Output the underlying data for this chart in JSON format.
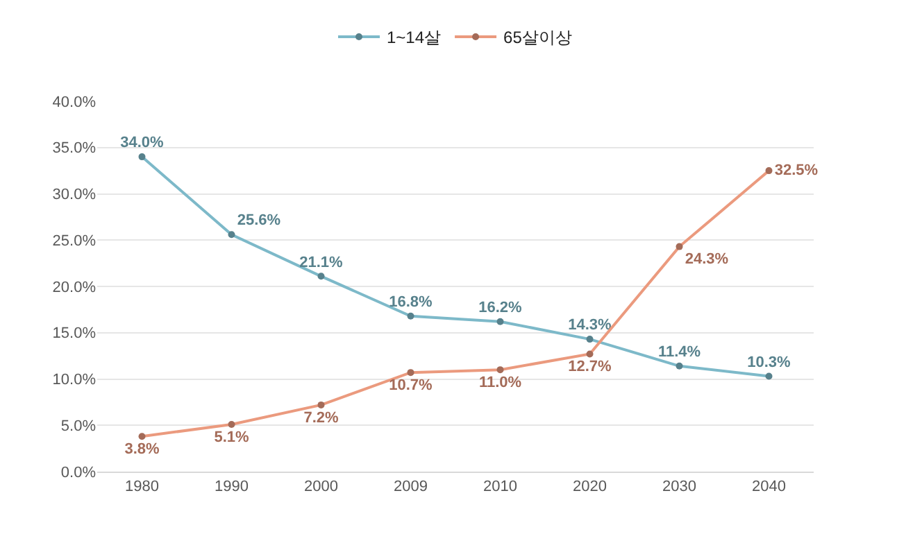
{
  "chart_data": {
    "type": "line",
    "categories": [
      "1980",
      "1990",
      "2000",
      "2009",
      "2010",
      "2020",
      "2030",
      "2040"
    ],
    "series": [
      {
        "name": "1~14살",
        "color": "#7db9c9",
        "values": [
          34.0,
          25.6,
          21.1,
          16.8,
          16.2,
          14.3,
          11.4,
          10.3
        ],
        "value_labels": [
          "34.0%",
          "25.6%",
          "21.1%",
          "16.8%",
          "16.2%",
          "14.3%",
          "11.4%",
          "10.3%"
        ]
      },
      {
        "name": "65살이상",
        "color": "#eb9a7e",
        "values": [
          3.8,
          5.1,
          7.2,
          10.7,
          11.0,
          12.7,
          24.3,
          32.5
        ],
        "value_labels": [
          "3.8%",
          "5.1%",
          "7.2%",
          "10.7%",
          "11.0%",
          "12.7%",
          "24.3%",
          "32.5%"
        ]
      }
    ],
    "ylim": [
      0,
      40
    ],
    "yticks": [
      {
        "value": 0,
        "label": "0.0%"
      },
      {
        "value": 5,
        "label": "5.0%"
      },
      {
        "value": 10,
        "label": "10.0%"
      },
      {
        "value": 15,
        "label": "15.0%"
      },
      {
        "value": 20,
        "label": "20.0%"
      },
      {
        "value": 25,
        "label": "25.0%"
      },
      {
        "value": 30,
        "label": "30.0%"
      },
      {
        "value": 35,
        "label": "35.0%"
      },
      {
        "value": 40,
        "label": "40.0%"
      }
    ],
    "grid": "y",
    "legend": "top",
    "marker": "circle",
    "line_style": "solid"
  }
}
